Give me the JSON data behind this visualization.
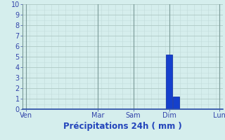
{
  "title": "",
  "xlabel": "Précipitations 24h ( mm )",
  "ylabel": "",
  "ylim": [
    0,
    10
  ],
  "xlim": [
    -0.5,
    27.5
  ],
  "background_color": "#d5eeed",
  "plot_bg_color": "#d5eeed",
  "grid_major_color": "#aec8c4",
  "grid_minor_color": "#c4dedd",
  "bar_data": [
    {
      "x": 0,
      "height": 0.0
    },
    {
      "x": 1,
      "height": 0.0
    },
    {
      "x": 2,
      "height": 0.0
    },
    {
      "x": 3,
      "height": 0.0
    },
    {
      "x": 4,
      "height": 0.0
    },
    {
      "x": 5,
      "height": 0.0
    },
    {
      "x": 6,
      "height": 0.0
    },
    {
      "x": 7,
      "height": 0.0
    },
    {
      "x": 8,
      "height": 0.0
    },
    {
      "x": 9,
      "height": 0.0
    },
    {
      "x": 10,
      "height": 0.0
    },
    {
      "x": 11,
      "height": 0.0
    },
    {
      "x": 12,
      "height": 0.0
    },
    {
      "x": 13,
      "height": 0.0
    },
    {
      "x": 14,
      "height": 0.0
    },
    {
      "x": 15,
      "height": 0.0
    },
    {
      "x": 16,
      "height": 0.0
    },
    {
      "x": 17,
      "height": 0.0
    },
    {
      "x": 18,
      "height": 0.0
    },
    {
      "x": 19,
      "height": 0.0
    },
    {
      "x": 20,
      "height": 5.2
    },
    {
      "x": 21,
      "height": 1.2
    },
    {
      "x": 22,
      "height": 0.0
    },
    {
      "x": 23,
      "height": 0.0
    },
    {
      "x": 24,
      "height": 0.0
    },
    {
      "x": 25,
      "height": 0.0
    },
    {
      "x": 26,
      "height": 0.0
    },
    {
      "x": 27,
      "height": 0.0
    }
  ],
  "bar_color": "#1540cc",
  "bar_edge_color": "#0020a0",
  "xtick_positions": [
    0,
    10,
    15,
    20,
    27
  ],
  "xtick_labels": [
    "Ven",
    "Mar",
    "Sam",
    "Dim",
    "Lun"
  ],
  "ytick_positions": [
    0,
    1,
    2,
    3,
    4,
    5,
    6,
    7,
    8,
    9,
    10
  ],
  "ytick_labels": [
    "0",
    "1",
    "2",
    "3",
    "4",
    "5",
    "6",
    "7",
    "8",
    "9",
    "10"
  ],
  "vline_positions": [
    0,
    10,
    15,
    20,
    27
  ],
  "vline_color": "#7a9a98",
  "bottom_line_color": "#3355aa",
  "tick_color": "#3344aa",
  "label_color": "#2244bb",
  "xlabel_fontsize": 8.5,
  "tick_fontsize": 7
}
